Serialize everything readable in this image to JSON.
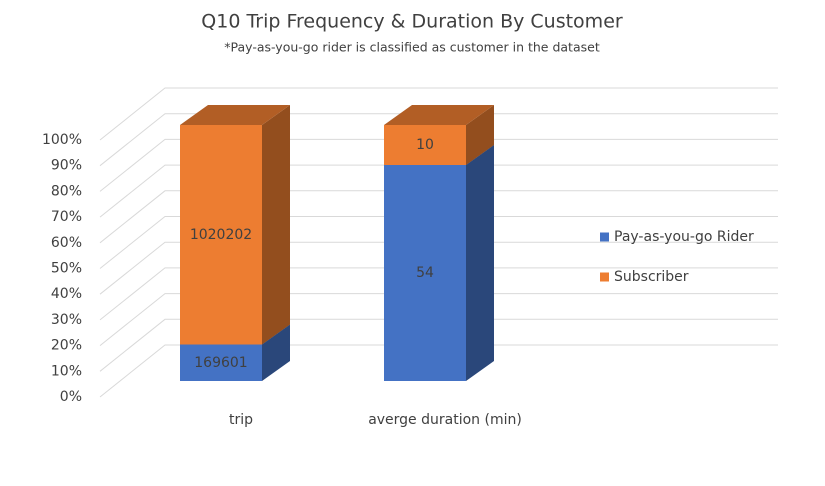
{
  "chart_data": {
    "type": "bar",
    "stack": "percent",
    "three_d": true,
    "title": "Q10 Trip Frequency & Duration By Customer",
    "subtitle": "*Pay-as-you-go rider is classified as customer in the dataset",
    "categories": [
      "trip",
      "averge duration (min)"
    ],
    "series": [
      {
        "name": "Pay-as-you-go Rider",
        "color": "#4472c4",
        "values": [
          169601,
          54
        ]
      },
      {
        "name": "Subscriber",
        "color": "#ed7d31",
        "values": [
          1020202,
          10
        ]
      }
    ],
    "ylim": [
      0,
      100
    ],
    "yticks": [
      {
        "value": 0,
        "label": "0%"
      },
      {
        "value": 10,
        "label": "10%"
      },
      {
        "value": 20,
        "label": "20%"
      },
      {
        "value": 30,
        "label": "30%"
      },
      {
        "value": 40,
        "label": "40%"
      },
      {
        "value": 50,
        "label": "50%"
      },
      {
        "value": 60,
        "label": "60%"
      },
      {
        "value": 70,
        "label": "70%"
      },
      {
        "value": 80,
        "label": "80%"
      },
      {
        "value": 90,
        "label": "90%"
      },
      {
        "value": 100,
        "label": "100%"
      }
    ],
    "grid": true,
    "legend": "right"
  }
}
